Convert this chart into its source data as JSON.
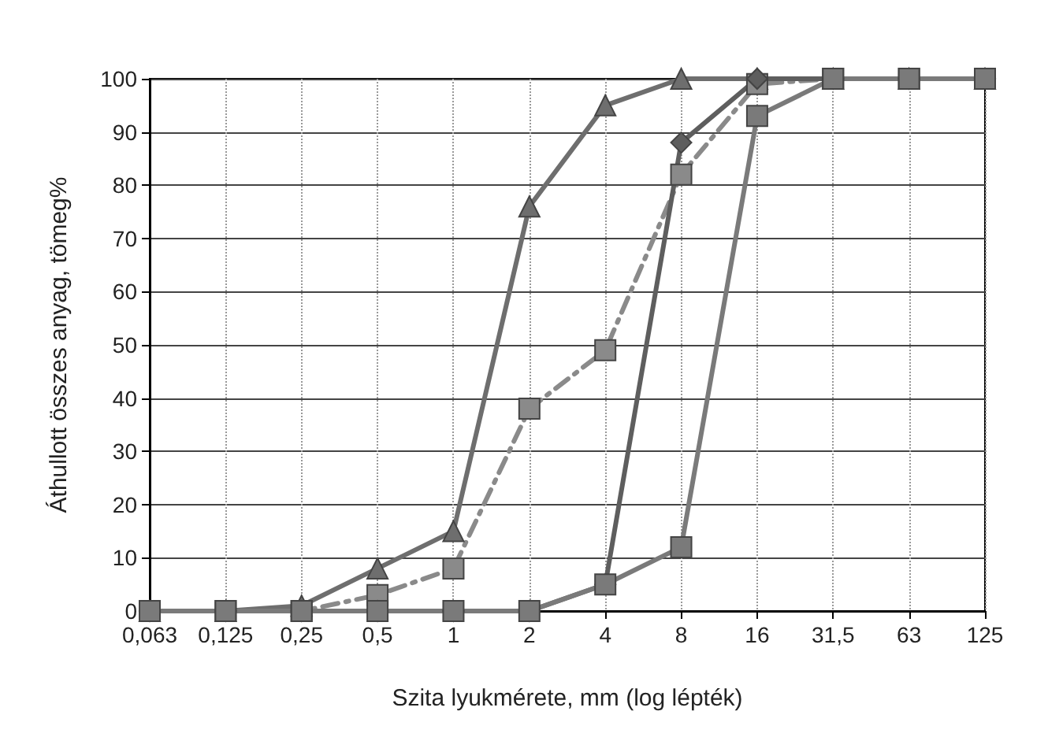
{
  "chart_data": {
    "type": "line",
    "xlabel": "Szita lyukmérete, mm (log lépték)",
    "ylabel": "Áthullott összes anyag, tömeg%",
    "categories": [
      "0,063",
      "0,125",
      "0,25",
      "0,5",
      "1",
      "2",
      "4",
      "8",
      "16",
      "31,5",
      "63",
      "125"
    ],
    "series": [
      {
        "color": "#6e6e6e",
        "marker": "triangle",
        "line_style": "solid",
        "values": [
          0,
          0,
          1,
          8,
          15,
          76,
          95,
          100,
          100,
          100,
          100,
          100
        ]
      },
      {
        "color": "#8a8a8a",
        "marker": "square",
        "line_style": "dashed",
        "values": [
          0,
          0,
          0,
          3,
          8,
          38,
          49,
          82,
          99,
          100,
          100,
          100
        ]
      },
      {
        "color": "#5e5e5e",
        "marker": "diamond",
        "line_style": "solid",
        "values": [
          0,
          0,
          0,
          0,
          0,
          0,
          5,
          88,
          100,
          100,
          100,
          100
        ]
      },
      {
        "color": "#7a7a7a",
        "marker": "square",
        "line_style": "solid",
        "values": [
          0,
          0,
          0,
          0,
          0,
          0,
          5,
          12,
          93,
          100,
          100,
          100
        ]
      }
    ],
    "ylim": [
      0,
      100
    ],
    "yticks": [
      0,
      10,
      20,
      30,
      40,
      50,
      60,
      70,
      80,
      90,
      100
    ],
    "grid": true
  }
}
